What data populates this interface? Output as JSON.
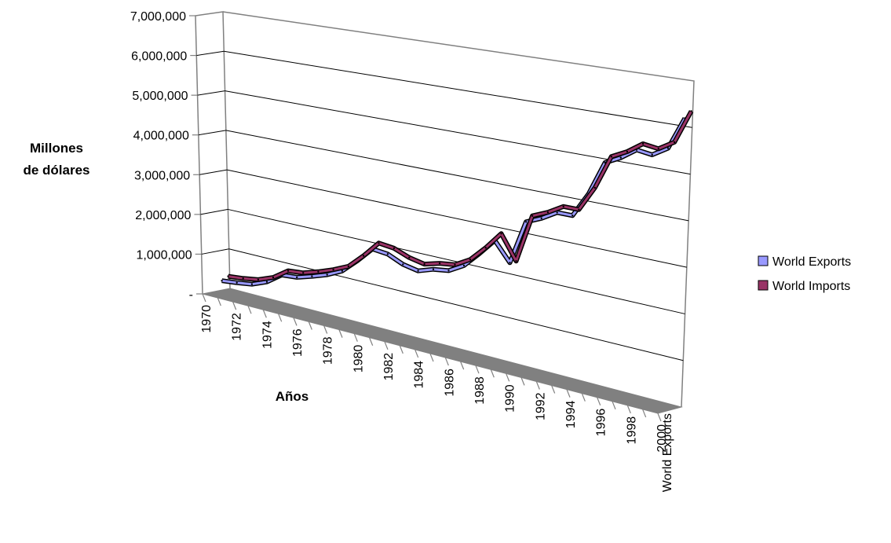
{
  "chart_data": {
    "type": "line",
    "view": "3d",
    "ylabel_lines": [
      "Millones",
      "de dólares"
    ],
    "xlabel": "Años",
    "depth_label": "World Exports",
    "y_ticks": [
      {
        "value": 0,
        "label": "-"
      },
      {
        "value": 1000000,
        "label": "1,000,000"
      },
      {
        "value": 2000000,
        "label": "2,000,000"
      },
      {
        "value": 3000000,
        "label": "3,000,000"
      },
      {
        "value": 4000000,
        "label": "4,000,000"
      },
      {
        "value": 5000000,
        "label": "5,000,000"
      },
      {
        "value": 6000000,
        "label": "6,000,000"
      },
      {
        "value": 7000000,
        "label": "7,000,000"
      }
    ],
    "ylim": [
      0,
      7000000
    ],
    "x": [
      1970,
      1971,
      1972,
      1973,
      1974,
      1975,
      1976,
      1977,
      1978,
      1979,
      1980,
      1981,
      1982,
      1983,
      1984,
      1985,
      1986,
      1987,
      1988,
      1989,
      1990,
      1991,
      1992,
      1993,
      1994,
      1995,
      1996,
      1997,
      1998,
      1999,
      2000
    ],
    "x_tick_labels": [
      "1970",
      "1972",
      "1974",
      "1976",
      "1978",
      "1980",
      "1982",
      "1984",
      "1986",
      "1988",
      "1990",
      "1992",
      "1994",
      "1996",
      "1998",
      "2000"
    ],
    "series": [
      {
        "name": "World Exports",
        "color": "#9999ff",
        "values": [
          315000,
          360000,
          420000,
          575000,
          840000,
          875000,
          990000,
          1120000,
          1300000,
          1630000,
          2000000,
          1960000,
          1800000,
          1730000,
          1850000,
          1900000,
          2100000,
          2450000,
          2830000,
          2400000,
          3400000,
          3550000,
          3750000,
          3750000,
          4300000,
          5050000,
          5220000,
          5450000,
          5400000,
          5600000,
          6300000
        ]
      },
      {
        "name": "World Imports",
        "color": "#993366",
        "values": [
          330000,
          375000,
          440000,
          590000,
          850000,
          890000,
          1010000,
          1150000,
          1320000,
          1660000,
          2050000,
          2010000,
          1870000,
          1800000,
          1900000,
          1950000,
          2150000,
          2500000,
          2900000,
          2350000,
          3450000,
          3600000,
          3800000,
          3800000,
          4350000,
          5100000,
          5270000,
          5500000,
          5450000,
          5650000,
          6370000
        ]
      }
    ],
    "legend": {
      "position": "right"
    },
    "grid": true,
    "colors": {
      "floor": "#808080",
      "wall_line": "#808080",
      "series_outline": "#000000"
    }
  }
}
